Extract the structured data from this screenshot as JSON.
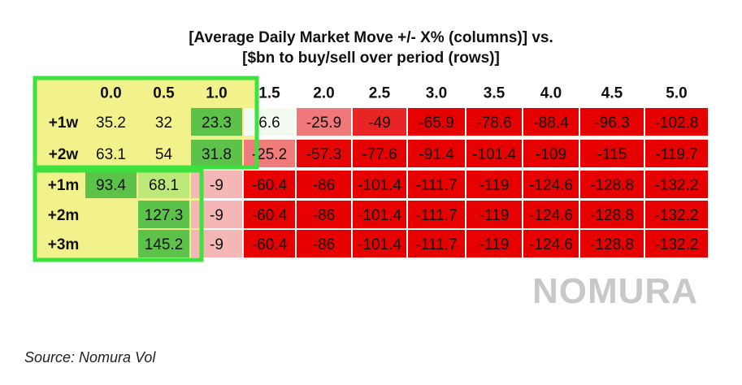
{
  "chart_data": {
    "type": "heatmap",
    "title_line1": "[Average Daily Market Move +/- X% (columns)] vs.",
    "title_line2": "[$bn to buy/sell over period (rows)]",
    "columns": [
      "0.0",
      "0.5",
      "1.0",
      "1.5",
      "2.0",
      "2.5",
      "3.0",
      "3.5",
      "4.0",
      "4.5",
      "5.0"
    ],
    "rows": [
      "+1w",
      "+2w",
      "+1m",
      "+2m",
      "+3m"
    ],
    "values": [
      [
        35.2,
        32,
        23.3,
        6.6,
        -25.9,
        -49,
        -65.9,
        -78.6,
        -88.4,
        -96.3,
        -102.8
      ],
      [
        63.1,
        54,
        31.8,
        -25.2,
        -57.3,
        -77.6,
        -91.4,
        -101.4,
        -109,
        -115,
        -119.7
      ],
      [
        93.4,
        68.1,
        -9,
        -60.4,
        -86,
        -101.4,
        -111.7,
        -119,
        -124.6,
        -128.8,
        -132.2
      ],
      [
        null,
        127.3,
        -9,
        -60.4,
        -86,
        -101.4,
        -111.7,
        -119,
        -124.6,
        -128.8,
        -132.2
      ],
      [
        null,
        145.2,
        -9,
        -60.4,
        -86,
        -101.4,
        -111.7,
        -119,
        -124.6,
        -128.8,
        -132.2
      ]
    ],
    "colors": {
      "positive_light": "#e6f59a",
      "positive_mid": "#bfe87a",
      "positive_dark": "#5cc24a",
      "negative_light": "#f5b6b6",
      "negative_dark": "#e60000",
      "highlight_background": "#f2f28c",
      "highlight_border": "#3ee13e"
    }
  },
  "logo_text": "NOMURA",
  "source": "Source: Nomura Vol"
}
